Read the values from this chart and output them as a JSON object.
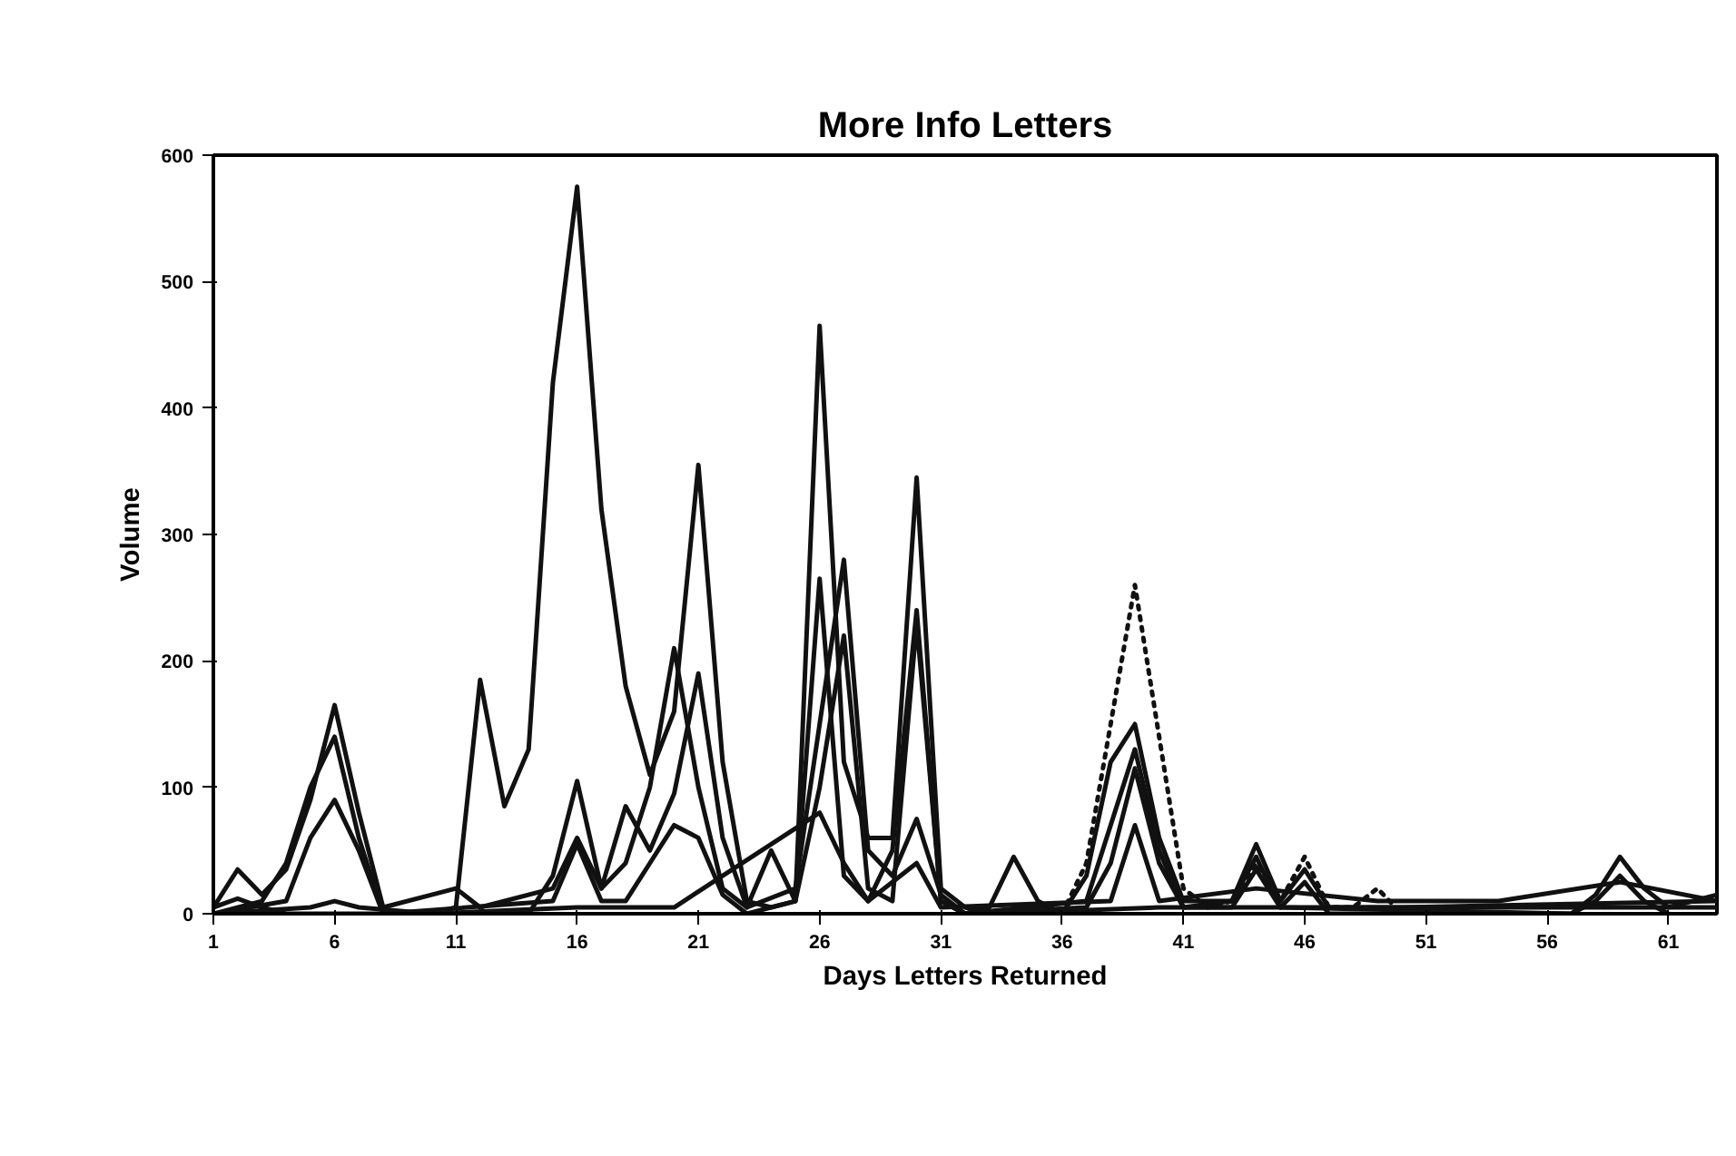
{
  "chart_data": {
    "type": "line",
    "title": "More Info Letters",
    "xlabel": "Days Letters Returned",
    "ylabel": "Volume",
    "xlim": [
      1,
      63
    ],
    "xticks": [
      1,
      6,
      11,
      16,
      21,
      26,
      31,
      36,
      41,
      46,
      51,
      56,
      61
    ],
    "ylim": [
      0,
      600
    ],
    "yticks": [
      0,
      100,
      200,
      300,
      400,
      500,
      600
    ],
    "grid": false,
    "line_style": "solid",
    "series": [
      {
        "color": "#111111",
        "x": [
          1,
          2,
          3,
          4,
          10,
          11,
          12,
          13,
          14,
          15,
          16,
          17,
          18,
          19,
          20,
          21,
          22,
          23,
          24,
          25,
          26,
          27,
          28,
          29,
          30,
          31,
          32,
          33,
          40,
          50,
          63
        ],
        "values": [
          5,
          12,
          5,
          0,
          0,
          5,
          185,
          85,
          130,
          420,
          575,
          320,
          180,
          110,
          160,
          355,
          120,
          10,
          5,
          10,
          465,
          120,
          60,
          60,
          345,
          20,
          5,
          0,
          5,
          5,
          10
        ]
      },
      {
        "color": "#111111",
        "x": [
          1,
          2,
          3,
          4,
          5,
          6,
          7,
          8,
          10,
          11,
          12,
          15,
          16,
          17,
          18,
          19,
          20,
          21,
          22,
          23,
          24,
          25,
          26,
          27,
          28,
          29,
          30,
          31,
          32,
          33,
          34,
          35,
          36,
          37,
          38,
          39,
          40,
          41,
          43,
          44,
          45,
          46,
          47,
          63
        ],
        "values": [
          5,
          35,
          15,
          35,
          90,
          165,
          80,
          5,
          15,
          20,
          5,
          20,
          60,
          20,
          40,
          100,
          210,
          100,
          20,
          5,
          50,
          10,
          265,
          30,
          10,
          50,
          240,
          10,
          0,
          5,
          45,
          10,
          0,
          30,
          120,
          150,
          60,
          10,
          10,
          55,
          10,
          35,
          5,
          5
        ]
      },
      {
        "color": "#111111",
        "x": [
          1,
          3,
          4,
          5,
          6,
          7,
          8,
          14,
          15,
          16,
          17,
          18,
          19,
          20,
          21,
          22,
          23,
          25,
          26,
          27,
          28,
          29,
          30,
          31,
          32,
          37,
          38,
          39,
          40,
          41,
          43,
          44,
          45,
          46,
          47,
          57,
          58,
          59,
          60,
          61,
          63
        ],
        "values": [
          0,
          10,
          40,
          100,
          140,
          60,
          0,
          0,
          30,
          105,
          20,
          85,
          50,
          95,
          190,
          60,
          5,
          20,
          150,
          280,
          50,
          30,
          75,
          15,
          0,
          10,
          70,
          130,
          50,
          5,
          10,
          45,
          5,
          25,
          0,
          0,
          15,
          45,
          20,
          5,
          15
        ]
      },
      {
        "color": "#111111",
        "x": [
          1,
          4,
          5,
          6,
          7,
          8,
          15,
          16,
          17,
          18,
          19,
          20,
          21,
          22,
          23,
          25,
          26,
          27,
          28,
          29,
          30,
          31,
          32,
          37,
          38,
          39,
          40,
          41,
          43,
          44,
          45,
          57,
          58,
          59,
          60,
          61
        ],
        "values": [
          0,
          10,
          60,
          90,
          50,
          0,
          10,
          55,
          10,
          10,
          40,
          70,
          60,
          15,
          0,
          10,
          100,
          220,
          20,
          10,
          230,
          10,
          0,
          5,
          40,
          115,
          40,
          5,
          5,
          35,
          5,
          0,
          10,
          30,
          10,
          0
        ]
      },
      {
        "color": "#111111",
        "line_style": "dotted",
        "x": [
          36,
          37,
          38,
          39,
          40,
          41,
          42,
          43,
          44,
          45,
          46,
          47,
          48,
          49,
          50
        ],
        "values": [
          0,
          40,
          150,
          260,
          140,
          20,
          5,
          10,
          40,
          10,
          45,
          5,
          5,
          20,
          0
        ]
      },
      {
        "color": "#111111",
        "x": [
          1,
          5,
          6,
          7,
          10,
          16,
          20,
          26,
          27,
          28,
          30,
          31,
          38,
          39,
          40,
          44,
          49,
          54,
          59,
          63
        ],
        "values": [
          0,
          5,
          10,
          5,
          0,
          5,
          5,
          80,
          40,
          10,
          40,
          5,
          10,
          70,
          10,
          20,
          10,
          10,
          25,
          10
        ]
      }
    ]
  }
}
